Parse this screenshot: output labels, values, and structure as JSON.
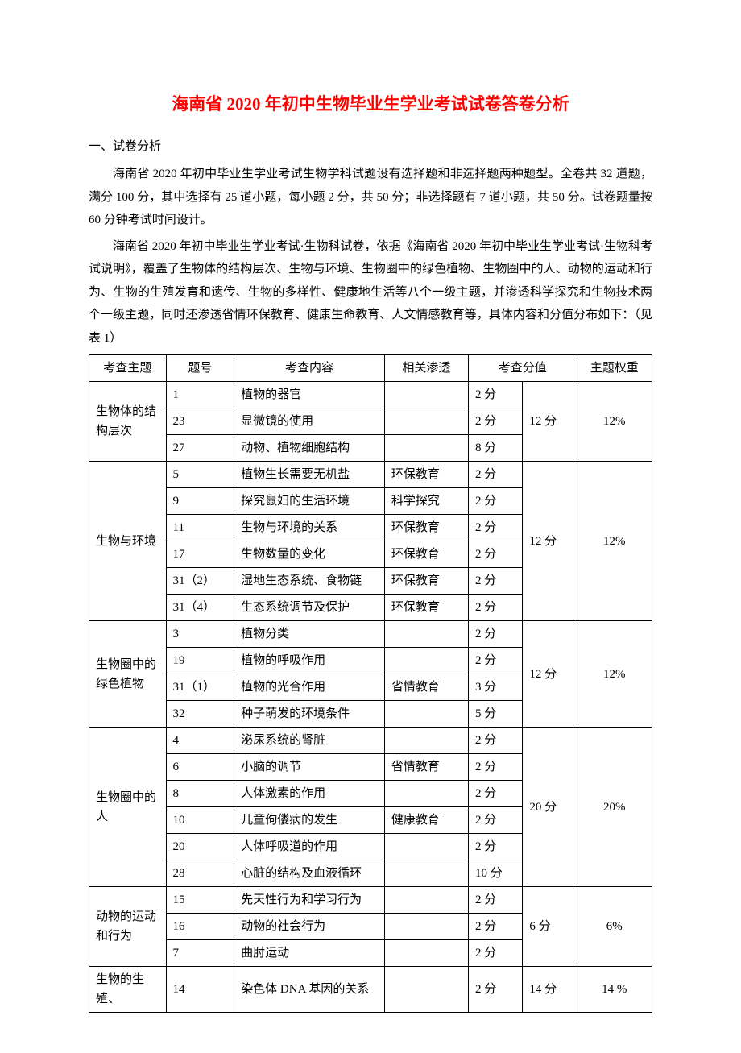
{
  "title": "海南省 2020 年初中生物毕业生学业考试试卷答卷分析",
  "section1_heading": "一、试卷分析",
  "para1": "海南省 2020 年初中毕业生学业考试生物学科试题设有选择题和非选择题两种题型。全卷共 32 道题，满分 100 分，其中选择有 25 道小题，每小题 2 分，共 50 分；非选择题有 7 道小题，共 50 分。试卷题量按 60 分钟考试时间设计。",
  "para2": "海南省 2020 年初中毕业生学业考试·生物科试卷，依据《海南省 2020 年初中毕业生学业考试·生物科考试说明》，覆盖了生物体的结构层次、生物与环境、生物圈中的绿色植物、生物圈中的人、动物的运动和行为、生物的生殖发育和遗传、生物的多样性、健康地生活等八个一级主题，并渗透科学探究和生物技术两个一级主题，同时还渗透省情环保教育、健康生命教育、人文情感教育等，具体内容和分值分布如下：（见表 1）",
  "table": {
    "headers": {
      "theme": "考查主题",
      "qnum": "题号",
      "content": "考查内容",
      "permeate": "相关渗透",
      "score_pair": "考查分值",
      "weight": "主题权重"
    },
    "groups": [
      {
        "theme": "生物体的结构层次",
        "total": "12 分",
        "weight": "12%",
        "rows": [
          {
            "qnum": "1",
            "content": "植物的器官",
            "permeate": "",
            "score": "2 分"
          },
          {
            "qnum": "23",
            "content": "显微镜的使用",
            "permeate": "",
            "score": "2 分"
          },
          {
            "qnum": "27",
            "content": "动物、植物细胞结构",
            "permeate": "",
            "score": "8 分"
          }
        ]
      },
      {
        "theme": "生物与环境",
        "total": "12 分",
        "weight": "12%",
        "rows": [
          {
            "qnum": "5",
            "content": "植物生长需要无机盐",
            "permeate": "环保教育",
            "score": "2 分"
          },
          {
            "qnum": "9",
            "content": "探究鼠妇的生活环境",
            "permeate": "科学探究",
            "score": "2 分"
          },
          {
            "qnum": "11",
            "content": "生物与环境的关系",
            "permeate": "环保教育",
            "score": "2 分"
          },
          {
            "qnum": "17",
            "content": "生物数量的变化",
            "permeate": "环保教育",
            "score": "2 分"
          },
          {
            "qnum": "31（2）",
            "content": "湿地生态系统、食物链",
            "permeate": "环保教育",
            "score": "2 分"
          },
          {
            "qnum": "31（4）",
            "content": "生态系统调节及保护",
            "permeate": "环保教育",
            "score": "2 分"
          }
        ]
      },
      {
        "theme": "生物圈中的绿色植物",
        "total": "12 分",
        "weight": "12%",
        "rows": [
          {
            "qnum": "3",
            "content": "植物分类",
            "permeate": "",
            "score": "2 分"
          },
          {
            "qnum": "19",
            "content": "植物的呼吸作用",
            "permeate": "",
            "score": "2 分"
          },
          {
            "qnum": "31（1）",
            "content": "植物的光合作用",
            "permeate": "省情教育",
            "score": "3 分"
          },
          {
            "qnum": "32",
            "content": "种子萌发的环境条件",
            "permeate": "",
            "score": "5 分"
          }
        ]
      },
      {
        "theme": "生物圈中的人",
        "total": "20 分",
        "weight": "20%",
        "rows": [
          {
            "qnum": "4",
            "content": "泌尿系统的肾脏",
            "permeate": "",
            "score": "2 分"
          },
          {
            "qnum": "6",
            "content": "小脑的调节",
            "permeate": "省情教育",
            "score": "2 分"
          },
          {
            "qnum": "8",
            "content": "人体激素的作用",
            "permeate": "",
            "score": "2 分"
          },
          {
            "qnum": "10",
            "content": "儿童佝偻病的发生",
            "permeate": "健康教育",
            "score": "2 分"
          },
          {
            "qnum": "20",
            "content": "人体呼吸道的作用",
            "permeate": "",
            "score": "2 分"
          },
          {
            "qnum": "28",
            "content": "心脏的结构及血液循环",
            "permeate": "",
            "score": "10 分"
          }
        ]
      },
      {
        "theme": "动物的运动和行为",
        "total": "6 分",
        "weight": "6%",
        "rows": [
          {
            "qnum": "15",
            "content": "先天性行为和学习行为",
            "permeate": "",
            "score": "2 分"
          },
          {
            "qnum": "16",
            "content": "动物的社会行为",
            "permeate": "",
            "score": "2 分"
          },
          {
            "qnum": "7",
            "content": "曲肘运动",
            "permeate": "",
            "score": "2 分"
          }
        ]
      },
      {
        "theme": "生物的生殖、",
        "total": "14 分",
        "weight": "14 %",
        "rows": [
          {
            "qnum": "14",
            "content": "染色体 DNA 基因的关系",
            "permeate": "",
            "score": "2 分"
          }
        ]
      }
    ]
  }
}
